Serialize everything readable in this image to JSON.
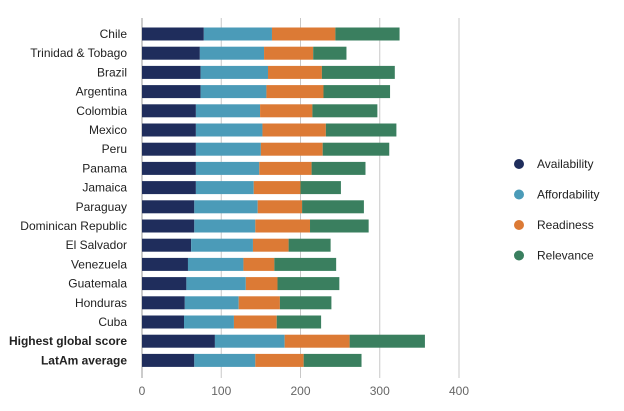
{
  "chart_data": {
    "type": "bar",
    "orientation": "horizontal",
    "stacked": true,
    "categories": [
      "Chile",
      "Trinidad & Tobago",
      "Brazil",
      "Argentina",
      "Colombia",
      "Mexico",
      "Peru",
      "Panama",
      "Jamaica",
      "Paraguay",
      "Dominican Republic",
      "El Salvador",
      "Venezuela",
      "Guatemala",
      "Honduras",
      "Cuba",
      "Highest global score",
      "LatAm average"
    ],
    "bold_categories": [
      "Highest global score",
      "LatAm average"
    ],
    "series": [
      {
        "name": "Availability",
        "color": "#1f2d5c",
        "values": [
          78,
          73,
          74,
          74,
          68,
          68,
          68,
          68,
          68,
          66,
          66,
          62,
          58,
          56,
          54,
          53,
          92,
          66
        ]
      },
      {
        "name": "Affordability",
        "color": "#4b9bb8",
        "values": [
          86,
          81,
          85,
          83,
          81,
          84,
          82,
          80,
          73,
          80,
          77,
          78,
          70,
          75,
          68,
          63,
          88,
          77
        ]
      },
      {
        "name": "Readiness",
        "color": "#dc7a35",
        "values": [
          80,
          62,
          68,
          72,
          66,
          80,
          78,
          66,
          59,
          56,
          69,
          45,
          39,
          40,
          52,
          54,
          82,
          61
        ]
      },
      {
        "name": "Relevance",
        "color": "#3a7f5f",
        "values": [
          81,
          42,
          92,
          84,
          82,
          89,
          84,
          68,
          51,
          78,
          74,
          53,
          78,
          78,
          65,
          56,
          95,
          73
        ]
      }
    ],
    "x_ticks": [
      "0",
      "100",
      "200",
      "300",
      "400"
    ],
    "xlim": [
      0,
      400
    ],
    "grid": "vertical",
    "legend": "right"
  }
}
